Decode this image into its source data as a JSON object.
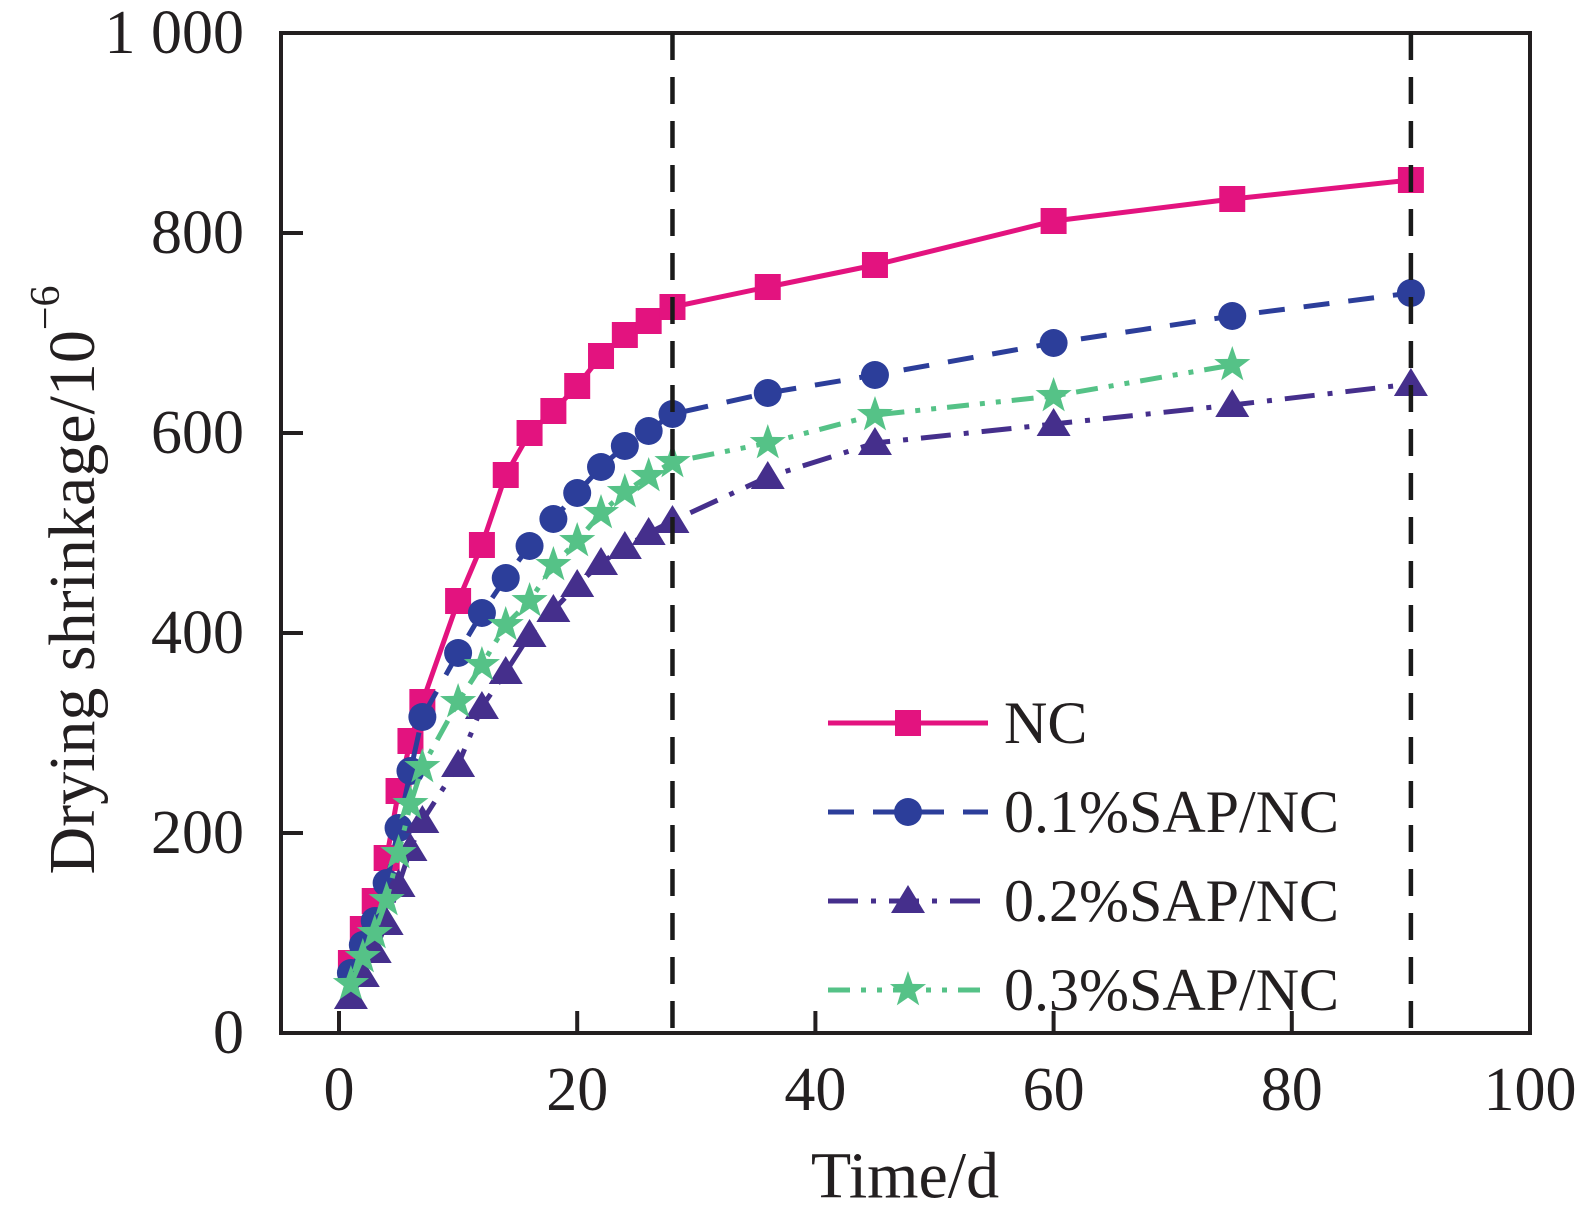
{
  "figure": {
    "x_axis_title": "Time/d",
    "y_axis_title_main": "Drying shrinkage/10",
    "y_axis_title_sup": "−6"
  },
  "chart_data": {
    "type": "line",
    "title": "",
    "xlabel": "Time/d",
    "ylabel": "Drying shrinkage/10^-6",
    "xlim": [
      -5,
      100
    ],
    "ylim": [
      0,
      1000
    ],
    "grid": false,
    "legend_position": "inside lower right",
    "x_ticks": [
      0,
      20,
      40,
      60,
      80,
      100
    ],
    "x_tick_labels": [
      "0",
      "20",
      "40",
      "60",
      "80",
      "100"
    ],
    "y_ticks": [
      0,
      200,
      400,
      600,
      800,
      1000
    ],
    "y_tick_labels": [
      "0",
      "200",
      "400",
      "600",
      "800",
      "1 000"
    ],
    "axis_color": "#231f20",
    "vlines": [
      {
        "x": 28,
        "style": "dashed",
        "color": "#1a1a1a"
      },
      {
        "x": 90,
        "style": "dashed",
        "color": "#1a1a1a"
      }
    ],
    "series": [
      {
        "name": "NC",
        "color": "#e3137f",
        "marker": "square",
        "line_style": "solid",
        "x": [
          1,
          2,
          3,
          4,
          5,
          6,
          7,
          10,
          12,
          14,
          16,
          18,
          20,
          22,
          24,
          26,
          28,
          36,
          45,
          60,
          75,
          90
        ],
        "y": [
          70,
          104,
          132,
          175,
          242,
          292,
          331,
          432,
          488,
          558,
          600,
          622,
          647,
          677,
          698,
          712,
          726,
          746,
          768,
          812,
          834,
          853
        ]
      },
      {
        "name": "0.1%SAP/NC",
        "color": "#2c3e9a",
        "marker": "circle",
        "line_style": "dashed",
        "x": [
          1,
          2,
          3,
          4,
          5,
          6,
          7,
          10,
          12,
          14,
          16,
          18,
          20,
          22,
          24,
          26,
          28,
          36,
          45,
          60,
          75,
          90
        ],
        "y": [
          60,
          88,
          112,
          150,
          205,
          262,
          316,
          380,
          420,
          455,
          487,
          514,
          540,
          566,
          587,
          602,
          619,
          640,
          658,
          690,
          717,
          740
        ]
      },
      {
        "name": "0.2%SAP/NC",
        "color": "#452f8c",
        "marker": "triangle",
        "line_style": "dashdot",
        "x": [
          1,
          2,
          3,
          4,
          5,
          6,
          7,
          10,
          12,
          14,
          16,
          18,
          20,
          22,
          24,
          26,
          28,
          36,
          45,
          60,
          75,
          90
        ],
        "y": [
          36,
          58,
          82,
          110,
          148,
          184,
          212,
          268,
          326,
          361,
          398,
          423,
          448,
          470,
          486,
          500,
          512,
          556,
          590,
          609,
          628,
          649
        ]
      },
      {
        "name": "0.3%SAP/NC",
        "color": "#55c287",
        "marker": "star",
        "line_style": "dashdotdot",
        "x": [
          1,
          2,
          3,
          4,
          5,
          6,
          7,
          10,
          12,
          14,
          16,
          18,
          20,
          22,
          24,
          26,
          28,
          36,
          45,
          60,
          75
        ],
        "y": [
          49,
          76,
          100,
          133,
          180,
          229,
          266,
          331,
          368,
          408,
          432,
          468,
          492,
          520,
          541,
          557,
          571,
          590,
          618,
          637,
          668
        ]
      }
    ]
  }
}
